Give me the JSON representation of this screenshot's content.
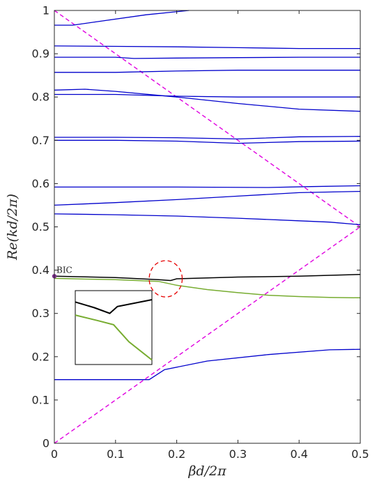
{
  "chart_data": {
    "type": "line",
    "title": "",
    "xlabel": "βd/2π",
    "ylabel": "Re(kd/2π)",
    "xlim": [
      0,
      0.5
    ],
    "ylim": [
      0,
      1
    ],
    "x_ticks": [
      "0",
      "0.1",
      "0.2",
      "0.3",
      "0.4",
      "0.5"
    ],
    "y_ticks": [
      "0",
      "0.1",
      "0.2",
      "0.3",
      "0.4",
      "0.5",
      "0.6",
      "0.7",
      "0.8",
      "0.9",
      "1"
    ],
    "grid": false,
    "legend": "none",
    "colors": {
      "band": "#0000cc",
      "light_line": "#e000e0",
      "bic_branch": "#000000",
      "lossy_branch": "#77ac30",
      "bic_marker": "#7e2f8e",
      "circle": "#e60000"
    },
    "light_lines": [
      {
        "points": [
          [
            0,
            1
          ],
          [
            0.5,
            0.5
          ]
        ]
      },
      {
        "points": [
          [
            0,
            0
          ],
          [
            0.5,
            0.5
          ]
        ]
      }
    ],
    "bands": [
      {
        "points": [
          [
            0,
            0.147
          ],
          [
            0.12,
            0.147
          ],
          [
            0.155,
            0.147
          ],
          [
            0.18,
            0.17
          ],
          [
            0.25,
            0.19
          ],
          [
            0.35,
            0.205
          ],
          [
            0.45,
            0.216
          ],
          [
            0.5,
            0.217
          ]
        ]
      },
      {
        "points": [
          [
            0,
            0.53
          ],
          [
            0.1,
            0.528
          ],
          [
            0.2,
            0.525
          ],
          [
            0.3,
            0.52
          ],
          [
            0.4,
            0.514
          ],
          [
            0.45,
            0.511
          ],
          [
            0.5,
            0.505
          ]
        ]
      },
      {
        "points": [
          [
            0,
            0.55
          ],
          [
            0.1,
            0.556
          ],
          [
            0.2,
            0.563
          ],
          [
            0.3,
            0.571
          ],
          [
            0.4,
            0.579
          ],
          [
            0.5,
            0.582
          ]
        ]
      },
      {
        "points": [
          [
            0,
            0.592
          ],
          [
            0.2,
            0.592
          ],
          [
            0.35,
            0.591
          ],
          [
            0.42,
            0.593
          ],
          [
            0.5,
            0.595
          ]
        ]
      },
      {
        "points": [
          [
            0,
            0.7
          ],
          [
            0.1,
            0.7
          ],
          [
            0.2,
            0.698
          ],
          [
            0.3,
            0.693
          ],
          [
            0.4,
            0.697
          ],
          [
            0.5,
            0.698
          ]
        ]
      },
      {
        "points": [
          [
            0,
            0.707
          ],
          [
            0.1,
            0.707
          ],
          [
            0.2,
            0.706
          ],
          [
            0.3,
            0.703
          ],
          [
            0.4,
            0.708
          ],
          [
            0.5,
            0.709
          ]
        ]
      },
      {
        "points": [
          [
            0,
            0.806
          ],
          [
            0.1,
            0.806
          ],
          [
            0.2,
            0.802
          ],
          [
            0.3,
            0.8
          ],
          [
            0.4,
            0.8
          ],
          [
            0.5,
            0.8
          ]
        ]
      },
      {
        "points": [
          [
            0,
            0.816
          ],
          [
            0.05,
            0.818
          ],
          [
            0.1,
            0.813
          ],
          [
            0.2,
            0.8
          ],
          [
            0.3,
            0.785
          ],
          [
            0.4,
            0.772
          ],
          [
            0.5,
            0.767
          ]
        ]
      },
      {
        "points": [
          [
            0,
            0.857
          ],
          [
            0.1,
            0.857
          ],
          [
            0.2,
            0.86
          ],
          [
            0.3,
            0.862
          ],
          [
            0.4,
            0.862
          ],
          [
            0.5,
            0.862
          ]
        ]
      },
      {
        "points": [
          [
            0,
            0.892
          ],
          [
            0.1,
            0.892
          ],
          [
            0.13,
            0.889
          ],
          [
            0.2,
            0.89
          ],
          [
            0.3,
            0.891
          ],
          [
            0.4,
            0.892
          ],
          [
            0.5,
            0.892
          ]
        ]
      },
      {
        "points": [
          [
            0,
            0.918
          ],
          [
            0.1,
            0.917
          ],
          [
            0.2,
            0.916
          ],
          [
            0.3,
            0.914
          ],
          [
            0.4,
            0.912
          ],
          [
            0.5,
            0.912
          ]
        ]
      },
      {
        "points": [
          [
            0,
            0.966
          ],
          [
            0.03,
            0.966
          ],
          [
            0.08,
            0.976
          ],
          [
            0.15,
            0.99
          ],
          [
            0.22,
            1.0
          ]
        ]
      }
    ],
    "bic_branch": {
      "points": [
        [
          0,
          0.386
        ],
        [
          0.1,
          0.383
        ],
        [
          0.17,
          0.378
        ],
        [
          0.19,
          0.376
        ],
        [
          0.2,
          0.38
        ],
        [
          0.3,
          0.384
        ],
        [
          0.4,
          0.386
        ],
        [
          0.5,
          0.39
        ]
      ]
    },
    "lossy_branch": {
      "points": [
        [
          0,
          0.381
        ],
        [
          0.1,
          0.378
        ],
        [
          0.17,
          0.374
        ],
        [
          0.2,
          0.365
        ],
        [
          0.25,
          0.355
        ],
        [
          0.3,
          0.348
        ],
        [
          0.35,
          0.342
        ],
        [
          0.4,
          0.339
        ],
        [
          0.45,
          0.337
        ],
        [
          0.5,
          0.336
        ]
      ]
    },
    "annotations": [
      {
        "text": "BIC",
        "x": 0,
        "y": 0.386
      }
    ],
    "highlight_circle": {
      "cx": 0.182,
      "cy": 0.38,
      "rx": 0.027,
      "ry": 0.042
    },
    "inset": {
      "position": "lower-left",
      "bic_branch": [
        [
          0,
          0.8
        ],
        [
          0.25,
          0.7
        ],
        [
          0.45,
          0.6
        ],
        [
          0.55,
          0.72
        ],
        [
          1,
          0.84
        ]
      ],
      "lossy_branch": [
        [
          0,
          0.57
        ],
        [
          0.3,
          0.47
        ],
        [
          0.5,
          0.4
        ],
        [
          0.7,
          0.1
        ],
        [
          1,
          -0.22
        ]
      ]
    }
  }
}
